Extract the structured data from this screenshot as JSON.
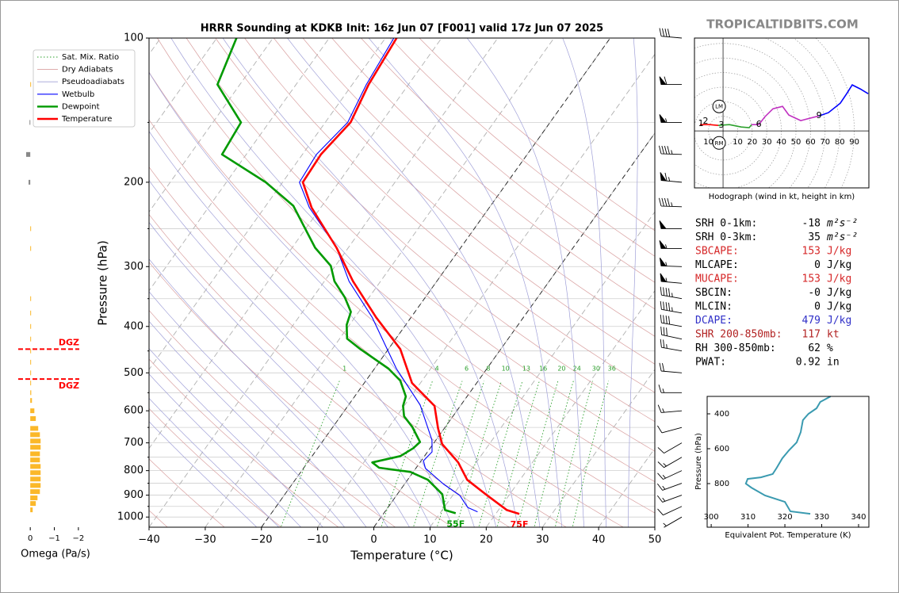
{
  "watermark": "TROPICALTIDBITS.COM",
  "chart_data": [
    {
      "type": "skewt",
      "title": "HRRR Sounding at KDKB Init: 16z Jun 07 [F001] valid 17z Jun 07 2025",
      "xlabel": "Temperature (°C)",
      "ylabel": "Pressure (hPa)",
      "xlim": [
        -40,
        50
      ],
      "ylim": [
        1050,
        100
      ],
      "xticks": [
        {
          "value": -40,
          "label": "−40"
        },
        {
          "value": -30,
          "label": "−30"
        },
        {
          "value": -20,
          "label": "−20"
        },
        {
          "value": -10,
          "label": "−10"
        },
        0,
        10,
        20,
        30,
        40,
        50
      ],
      "yticks": [
        100,
        200,
        300,
        400,
        500,
        600,
        700,
        800,
        900,
        1000
      ],
      "ygrid_minor": [
        150,
        250,
        350,
        450,
        550,
        650,
        750,
        850,
        950
      ],
      "highlight_isotherms": [
        -20,
        0
      ],
      "legend": "upper left",
      "background": {
        "mixing_ratio": {
          "name": "Sat. Mix. Ratio",
          "color": "#2ca02c",
          "values": [
            1,
            4,
            6,
            8,
            10,
            13,
            16,
            20,
            24,
            30,
            36
          ]
        },
        "dry_adiabats": {
          "name": "Dry Adiabats",
          "color": "#d9a0a0"
        },
        "pseudoadiabats": {
          "name": "Pseudoadiabats",
          "color": "#a0a0d8"
        }
      },
      "series": [
        {
          "name": "Wetbulb",
          "color": "#0000ff",
          "pressures": [
            975,
            955,
            902,
            853,
            791,
            763,
            731,
            691,
            583,
            490,
            383,
            322,
            274,
            226,
            200,
            175,
            150,
            125,
            100
          ],
          "values": [
            16.5,
            14.2,
            11.3,
            6.9,
            1.7,
            0.4,
            0.8,
            -0.7,
            -7.3,
            -16.1,
            -26.9,
            -35.6,
            -42.1,
            -52,
            -57,
            -57.5,
            -56,
            -57.5,
            -58.5
          ]
        },
        {
          "name": "Dewpoint",
          "color": "#009a00",
          "surface_label": "55F",
          "pressures": [
            982,
            967,
            896,
            836,
            805,
            789,
            769,
            746,
            718,
            697,
            648,
            616,
            586,
            560,
            519,
            490,
            446,
            424,
            397,
            373,
            348,
            322,
            299,
            274,
            224,
            200,
            175,
            150,
            125,
            100
          ],
          "values": [
            12.8,
            10.5,
            8,
            3.6,
            -0.5,
            -6.6,
            -8.5,
            -4.3,
            -3,
            -2.6,
            -5.9,
            -8.7,
            -10.2,
            -10.9,
            -13.9,
            -17.5,
            -25,
            -28.7,
            -30.5,
            -31.4,
            -34.3,
            -38.2,
            -40.8,
            -45.9,
            -55.1,
            -63,
            -74.3,
            -75,
            -84,
            -86.5
          ]
        },
        {
          "name": "Temperature",
          "color": "#ff0000",
          "surface_label": "75F",
          "pressures": [
            985,
            967,
            902,
            836,
            769,
            704,
            653,
            586,
            525,
            446,
            383,
            322,
            274,
            226,
            200,
            175,
            150,
            125,
            100
          ],
          "values": [
            24.2,
            21.5,
            16.2,
            10.6,
            6.8,
            1.6,
            -1.1,
            -4.6,
            -11.5,
            -17.9,
            -26.2,
            -34.9,
            -42.1,
            -51.6,
            -56.4,
            -56.7,
            -55.5,
            -57.1,
            -58
          ]
        }
      ],
      "wind": {
        "pressures": [
          100,
          125,
          150,
          175,
          200,
          225,
          250,
          275,
          300,
          325,
          350,
          375,
          400,
          425,
          450,
          500,
          550,
          600,
          650,
          700,
          750,
          800,
          850,
          900,
          950,
          1000
        ],
        "speeds": [
          40,
          60,
          55,
          45,
          65,
          45,
          50,
          55,
          55,
          55,
          45,
          45,
          40,
          30,
          25,
          20,
          15,
          15,
          10,
          10,
          15,
          15,
          15,
          15,
          10,
          5
        ],
        "directions": [
          275,
          270,
          270,
          272,
          275,
          272,
          270,
          270,
          272,
          275,
          280,
          280,
          280,
          282,
          280,
          275,
          270,
          265,
          255,
          240,
          240,
          245,
          250,
          250,
          245,
          240
        ]
      }
    },
    {
      "type": "hodograph",
      "caption": "Hodograph (wind in kt, height in km)",
      "xlim": [
        -19.6,
        100
      ],
      "ylim": [
        -39,
        63.6
      ],
      "xticks": [
        {
          "value": -10,
          "label": "10"
        },
        10,
        20,
        30,
        40,
        50,
        60,
        70,
        80,
        90
      ],
      "series": [
        {
          "color": "#ff0000",
          "u": [
            -15.8,
            -9.2,
            -3.3
          ],
          "v": [
            4.3,
            4.3,
            3.8
          ]
        },
        {
          "color": "#2ca02c",
          "u": [
            -3.3,
            4.3,
            12.5,
            17.9,
            19.6
          ],
          "v": [
            3.8,
            4.3,
            2.7,
            2.2,
            4.3
          ]
        },
        {
          "color": "#c030c0",
          "u": [
            19.6,
            24.5,
            28.8,
            34.2,
            40.8,
            45.1,
            53.3,
            65.8
          ],
          "v": [
            4.3,
            4.3,
            9.8,
            15.2,
            16.8,
            10.9,
            7.1,
            10.3
          ]
        },
        {
          "color": "#0000ff",
          "u": [
            65.8,
            72.3,
            80.4,
            84.8,
            88.6,
            94,
            99.5
          ],
          "v": [
            10.3,
            12.5,
            19,
            25.5,
            31.5,
            28.8,
            25.5
          ]
        }
      ],
      "heights": {
        "labels": [
          1,
          2,
          3,
          6,
          9
        ],
        "u": [
          -15.2,
          -12,
          -1.1,
          24.5,
          65.8
        ],
        "v": [
          4.9,
          6.5,
          3.8,
          4.3,
          10.3
        ]
      },
      "storm_motion": [
        {
          "label": "LM",
          "u": -2.7,
          "v": 16.8
        },
        {
          "label": "RM",
          "u": -2.7,
          "v": -8.2
        }
      ]
    },
    {
      "type": "line",
      "xlabel": "Equivalent Pot. Temperature (K)",
      "ylabel": "Pressure (hPa)",
      "xlim": [
        298.9,
        342.8
      ],
      "ylim": [
        1050,
        300
      ],
      "xticks": [
        300,
        310,
        320,
        330,
        340
      ],
      "yticks": [
        400,
        600,
        800
      ],
      "color": "#3a9ab0",
      "pressures": [
        300,
        332,
        368,
        400,
        436,
        505,
        564,
        609,
        655,
        709,
        745,
        764,
        773,
        800,
        823,
        868,
        905,
        959,
        973
      ],
      "values": [
        332.4,
        329.6,
        328.6,
        326.4,
        324.9,
        324.3,
        323.2,
        321.1,
        319.3,
        317.8,
        316.7,
        313.5,
        309.9,
        309.4,
        310.9,
        314.6,
        320,
        321.5,
        326.9
      ]
    },
    {
      "type": "bar",
      "orientation": "horizontal",
      "xlabel": "Omega (Pa/s)",
      "xlim": [
        0.5,
        -2.3
      ],
      "ylim": [
        1050,
        100
      ],
      "xticks": [
        0,
        {
          "value": -1,
          "label": "−1"
        },
        {
          "value": -2,
          "label": "−2"
        }
      ],
      "pressures": [
        125,
        150,
        175,
        200,
        250,
        275,
        350,
        375,
        400,
        425,
        450,
        475,
        500,
        525,
        550,
        571,
        600,
        623,
        653,
        673,
        694,
        715,
        738,
        760,
        784,
        808,
        833,
        859,
        885,
        912,
        937,
        966
      ],
      "values": [
        -0.03,
        0.03,
        0.17,
        0.07,
        -0.02,
        -0.02,
        -0.02,
        -0.02,
        -0.03,
        -0.03,
        -0.02,
        -0.02,
        -0.03,
        -0.03,
        -0.04,
        -0.07,
        -0.17,
        -0.23,
        -0.33,
        -0.4,
        -0.43,
        -0.43,
        -0.4,
        -0.4,
        -0.43,
        -0.43,
        -0.43,
        -0.43,
        -0.4,
        -0.3,
        -0.23,
        -0.1
      ],
      "colors": [
        "#fbb829",
        "#888888",
        "#888888",
        "#888888",
        "#fbb829",
        "#fbb829",
        "#fbb829",
        "#fbb829",
        "#fbb829",
        "#fbb829",
        "#fbb829",
        "#fbb829",
        "#fbb829",
        "#fbb829",
        "#fbb829",
        "#fbb829",
        "#fbb829",
        "#fbb829",
        "#fbb829",
        "#fbb829",
        "#fbb829",
        "#fbb829",
        "#fbb829",
        "#fbb829",
        "#fbb829",
        "#fbb829",
        "#fbb829",
        "#fbb829",
        "#fbb829",
        "#fbb829",
        "#fbb829",
        "#fbb829"
      ],
      "dgz": {
        "label": "DGZ",
        "bounds": [
          446,
          515
        ],
        "color": "#ff0000"
      }
    }
  ],
  "parameters": [
    {
      "label": "SRH 0-1km:",
      "value": "-18",
      "unit": "m²s⁻²",
      "color": "#000000"
    },
    {
      "label": "SRH 0-3km:",
      "value": "35",
      "unit": "m²s⁻²",
      "color": "#000000"
    },
    {
      "label": "SBCAPE:",
      "value": "153",
      "unit": "J/kg",
      "color": "#d62728"
    },
    {
      "label": "MLCAPE:",
      "value": "0",
      "unit": "J/kg",
      "color": "#000000"
    },
    {
      "label": "MUCAPE:",
      "value": "153",
      "unit": "J/kg",
      "color": "#d62728"
    },
    {
      "label": "SBCIN:",
      "value": "-0",
      "unit": "J/kg",
      "color": "#000000"
    },
    {
      "label": "MLCIN:",
      "value": "0",
      "unit": "J/kg",
      "color": "#000000"
    },
    {
      "label": "DCAPE:",
      "value": "479",
      "unit": "J/kg",
      "color": "#3030c8"
    },
    {
      "label": "SHR 200-850mb:",
      "value": "117",
      "unit": "kt",
      "color": "#b22222"
    },
    {
      "label": "RH 300-850mb:",
      "value": "62",
      "unit": "%",
      "color": "#000000"
    },
    {
      "label": "PWAT:",
      "value": "0.92",
      "unit": "in",
      "color": "#000000"
    }
  ]
}
